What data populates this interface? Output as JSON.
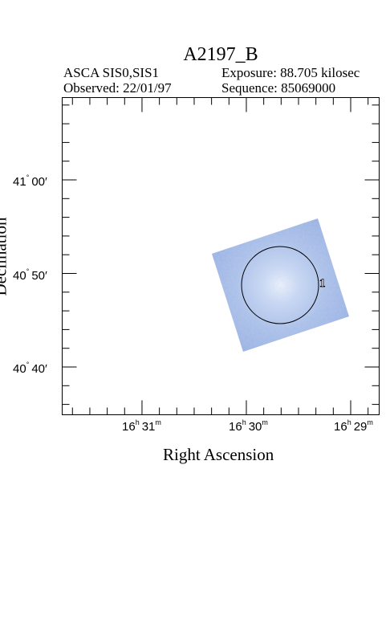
{
  "header": {
    "title": "A2197_B",
    "instrument": "ASCA SIS0,SIS1",
    "exposure": "Exposure: 88.705 kilosec",
    "observed": "Observed: 22/01/97",
    "sequence": "Sequence: 85069000"
  },
  "axes": {
    "y_title": "Declination",
    "x_title": "Right Ascension",
    "y_ticks": [
      {
        "deg": "41",
        "min": "00"
      },
      {
        "deg": "40",
        "min": "50"
      },
      {
        "deg": "40",
        "min": "40"
      }
    ],
    "x_ticks": [
      {
        "h": "16",
        "m": "31"
      },
      {
        "h": "16",
        "m": "30"
      },
      {
        "h": "16",
        "m": "29"
      }
    ]
  },
  "image": {
    "region_label": "1",
    "colors": {
      "field": "#a9bfe8",
      "field_light": "#d4e0f5",
      "field_edge": "#97b0e2",
      "circle": "#000000"
    }
  }
}
